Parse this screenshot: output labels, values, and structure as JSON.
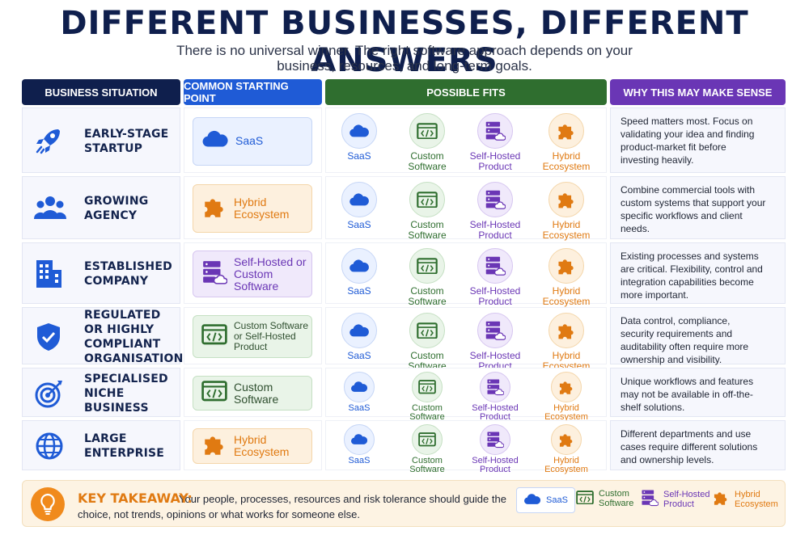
{
  "title": "DIFFERENT BUSINESSES, DIFFERENT ANSWERS",
  "subtitle": "There is no universal winner. The right software approach depends on your business, resources, and long-term goals.",
  "headers": {
    "situation": "BUSINESS SITUATION",
    "starting": "COMMON STARTING POINT",
    "fits": "POSSIBLE FITS",
    "why": "WHY THIS MAY MAKE SENSE"
  },
  "colors": {
    "navy": "#0f1f4d",
    "blue": "#1f5bd6",
    "green": "#2f6e2f",
    "purple": "#6a36b5",
    "orange": "#e07a12"
  },
  "fit_labels": {
    "saas": "SaaS",
    "custom": "Custom Software",
    "selfhosted": "Self-Hosted Product",
    "hybrid": "Hybrid Ecosystem"
  },
  "rows": [
    {
      "label_lines": [
        "EARLY-STAGE",
        "STARTUP"
      ],
      "icon": "rocket-icon",
      "start_type": "saas",
      "start_text": "SaaS",
      "why": "Speed matters most. Focus on validating your idea and finding product-market fit before investing heavily."
    },
    {
      "label_lines": [
        "GROWING",
        "AGENCY"
      ],
      "icon": "people-icon",
      "start_type": "hybrid",
      "start_text": "Hybrid Ecosystem",
      "why": "Combine commercial tools with custom systems that support your specific workflows and client needs."
    },
    {
      "label_lines": [
        "ESTABLISHED",
        "COMPANY"
      ],
      "icon": "building-icon",
      "start_type": "selfhosted",
      "start_text": "Self-Hosted or Custom Software",
      "why": "Existing processes and systems are critical. Flexibility, control and integration capabilities become more important."
    },
    {
      "label_lines": [
        "REGULATED",
        "OR HIGHLY",
        "COMPLIANT",
        "ORGANISATION"
      ],
      "icon": "shield-icon",
      "start_type": "custom",
      "start_text": "Custom Software or Self-Hosted Product",
      "why": "Data control, compliance, security requirements and auditability often require more ownership and visibility."
    },
    {
      "label_lines": [
        "SPECIALISED",
        "NICHE",
        "BUSINESS"
      ],
      "icon": "target-icon",
      "start_type": "custom",
      "start_text": "Custom Software",
      "why": "Unique workflows and features may not be available in off-the-shelf solutions."
    },
    {
      "label_lines": [
        "LARGE",
        "ENTERPRISE"
      ],
      "icon": "globe-icon",
      "start_type": "hybrid",
      "start_text": "Hybrid Ecosystem",
      "why": "Different departments and use cases require different solutions and ownership levels."
    }
  ],
  "takeaway": {
    "label": "KEY TAKEAWAY:",
    "text": "Your people, processes, resources and risk tolerance should guide the choice, not trends, opinions or what works for someone else."
  },
  "legend": [
    {
      "type": "saas",
      "label": "SaaS"
    },
    {
      "type": "custom",
      "label": "Custom Software"
    },
    {
      "type": "selfhosted",
      "label": "Self-Hosted Product"
    },
    {
      "type": "hybrid",
      "label": "Hybrid Ecosystem"
    }
  ]
}
